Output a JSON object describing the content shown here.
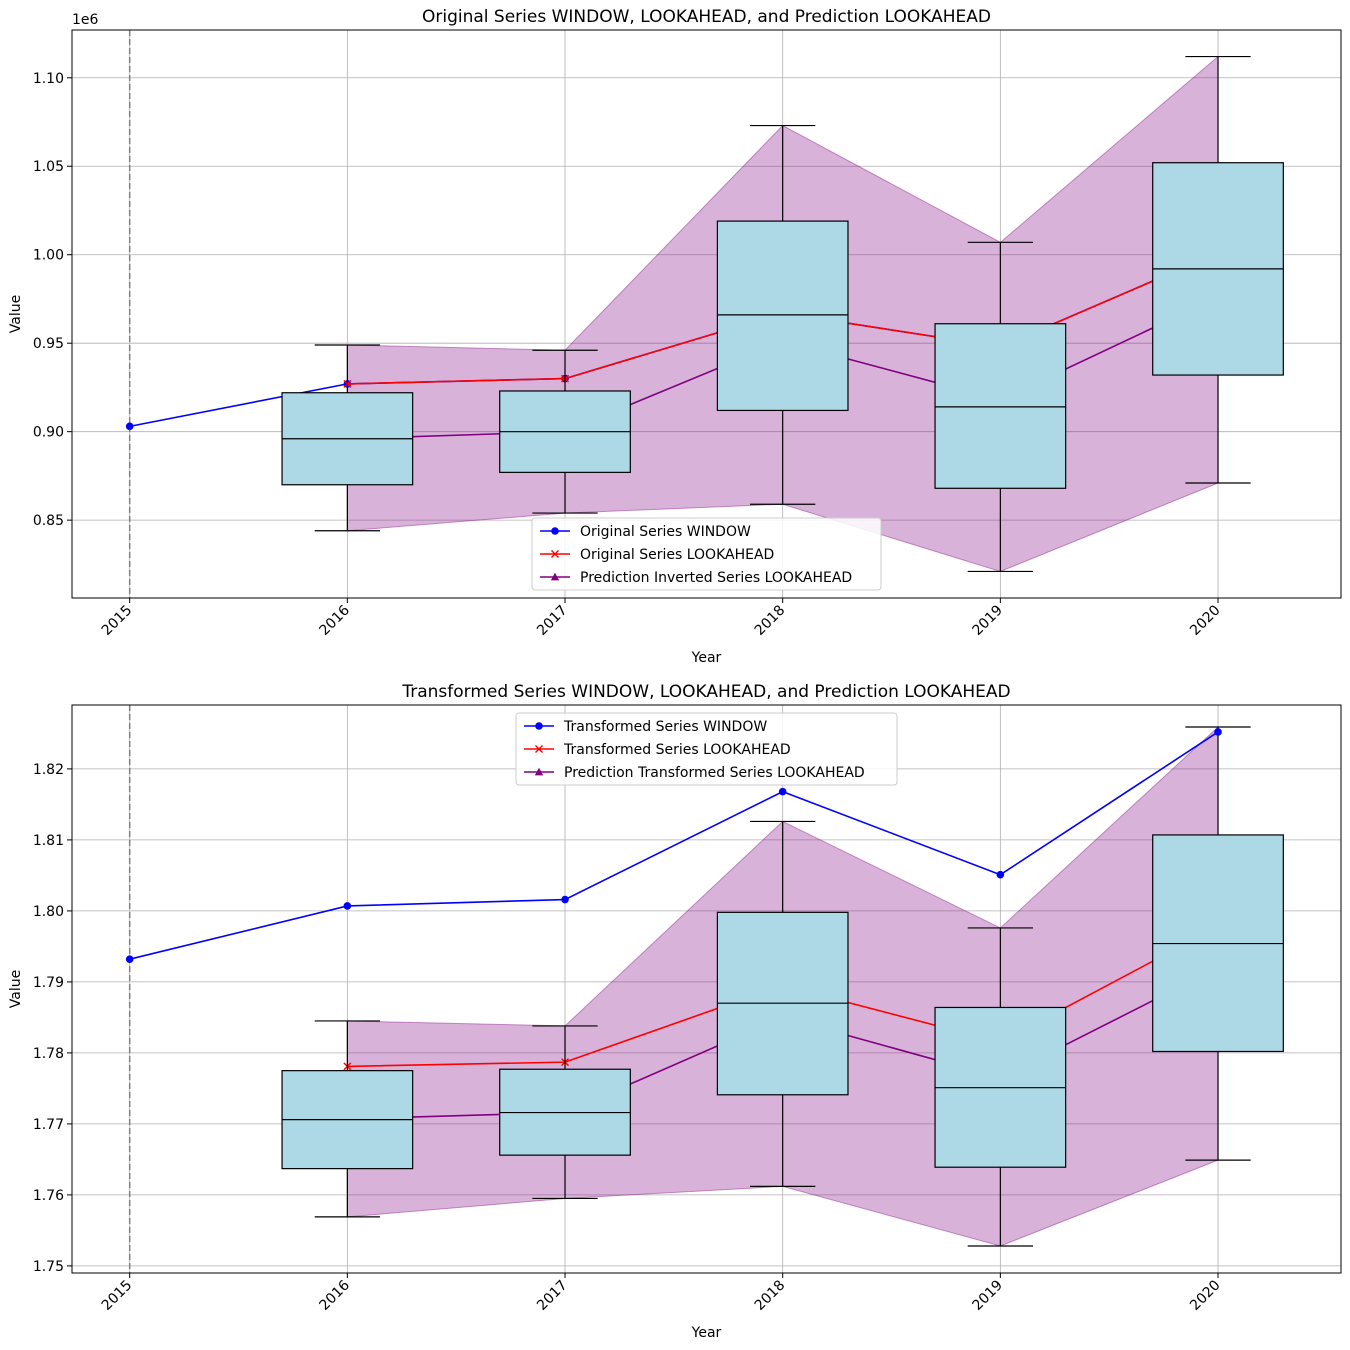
{
  "chart_data": [
    {
      "type": "box",
      "title": "Original Series WINDOW, LOOKAHEAD, and Prediction LOOKAHEAD",
      "xlabel": "Year",
      "ylabel": "Value",
      "offset_text": "1e6",
      "x_tick_labels": [
        "2015",
        "2016",
        "2017",
        "2018",
        "2019",
        "2020"
      ],
      "y_ticks": [
        850000,
        900000,
        950000,
        1000000,
        1050000,
        1100000
      ],
      "y_tick_labels": [
        "0.85",
        "0.90",
        "0.95",
        "1.00",
        "1.05",
        "1.10"
      ],
      "ylim": [
        806000,
        1127000
      ],
      "xlim": [
        2014.735,
        2020.565
      ],
      "grid": true,
      "legend_position": "lower center",
      "vline_x": 2015,
      "series": [
        {
          "name": "Original Series WINDOW",
          "color": "#0000ff",
          "marker": "circle",
          "x": [
            2015,
            2016,
            2017,
            2018,
            2019,
            2020
          ],
          "values": [
            903000,
            927000,
            930000,
            967000,
            948000,
            1001000
          ]
        },
        {
          "name": "Original Series LOOKAHEAD",
          "color": "#ff0000",
          "marker": "x",
          "x": [
            2016,
            2017,
            2018,
            2019,
            2020
          ],
          "values": [
            927000,
            930000,
            967000,
            948000,
            1001000
          ]
        },
        {
          "name": "Prediction Inverted Series LOOKAHEAD",
          "color": "#800080",
          "marker": "triangle",
          "x": [
            2016,
            2017,
            2018,
            2019,
            2020
          ],
          "values": [
            896000,
            900000,
            951000,
            918000,
            976000
          ]
        }
      ],
      "band": {
        "color": "#800080",
        "x": [
          2016,
          2017,
          2018,
          2019,
          2020
        ],
        "lower": [
          844000,
          854000,
          859000,
          821000,
          871000
        ],
        "upper": [
          949000,
          946000,
          1073000,
          1007000,
          1112000
        ]
      },
      "boxes": [
        {
          "x": 2016,
          "q1": 870000,
          "median": 896000,
          "q3": 922000,
          "whisker_low": 844000,
          "whisker_high": 949000
        },
        {
          "x": 2017,
          "q1": 877000,
          "median": 900000,
          "q3": 923000,
          "whisker_low": 854000,
          "whisker_high": 946000
        },
        {
          "x": 2018,
          "q1": 912000,
          "median": 966000,
          "q3": 1019000,
          "whisker_low": 859000,
          "whisker_high": 1073000
        },
        {
          "x": 2019,
          "q1": 868000,
          "median": 914000,
          "q3": 961000,
          "whisker_low": 821000,
          "whisker_high": 1007000
        },
        {
          "x": 2020,
          "q1": 932000,
          "median": 992000,
          "q3": 1052000,
          "whisker_low": 871000,
          "whisker_high": 1112000
        }
      ],
      "box_color": "#add8e6"
    },
    {
      "type": "box",
      "title": "Transformed Series WINDOW, LOOKAHEAD, and Prediction LOOKAHEAD",
      "xlabel": "Year",
      "ylabel": "Value",
      "offset_text": "",
      "x_tick_labels": [
        "2015",
        "2016",
        "2017",
        "2018",
        "2019",
        "2020"
      ],
      "y_ticks": [
        1.75,
        1.76,
        1.77,
        1.78,
        1.79,
        1.8,
        1.81,
        1.82
      ],
      "y_tick_labels": [
        "1.75",
        "1.76",
        "1.77",
        "1.78",
        "1.79",
        "1.80",
        "1.81",
        "1.82"
      ],
      "ylim": [
        1.749,
        1.829
      ],
      "xlim": [
        2014.735,
        2020.565
      ],
      "grid": true,
      "legend_position": "upper center",
      "vline_x": 2015,
      "series": [
        {
          "name": "Transformed Series WINDOW",
          "color": "#0000ff",
          "marker": "circle",
          "x": [
            2015,
            2016,
            2017,
            2018,
            2019,
            2020
          ],
          "values": [
            1.7932,
            1.8007,
            1.8016,
            1.8168,
            1.8051,
            1.8252
          ]
        },
        {
          "name": "Transformed Series LOOKAHEAD",
          "color": "#ff0000",
          "marker": "x",
          "x": [
            2016,
            2017,
            2018,
            2019,
            2020
          ],
          "values": [
            1.7781,
            1.7787,
            1.7895,
            1.7815,
            1.7978
          ]
        },
        {
          "name": "Prediction Transformed Series LOOKAHEAD",
          "color": "#800080",
          "marker": "triangle",
          "x": [
            2016,
            2017,
            2018,
            2019,
            2020
          ],
          "values": [
            1.7707,
            1.7716,
            1.785,
            1.7765,
            1.792
          ]
        }
      ],
      "band": {
        "color": "#800080",
        "x": [
          2016,
          2017,
          2018,
          2019,
          2020
        ],
        "lower": [
          1.7569,
          1.7595,
          1.7612,
          1.7528,
          1.7649
        ],
        "upper": [
          1.7845,
          1.7838,
          1.8126,
          1.7976,
          1.8259
        ]
      },
      "boxes": [
        {
          "x": 2016,
          "q1": 1.7637,
          "median": 1.7706,
          "q3": 1.7775,
          "whisker_low": 1.7569,
          "whisker_high": 1.7845
        },
        {
          "x": 2017,
          "q1": 1.7656,
          "median": 1.7716,
          "q3": 1.7777,
          "whisker_low": 1.7595,
          "whisker_high": 1.7838
        },
        {
          "x": 2018,
          "q1": 1.7741,
          "median": 1.787,
          "q3": 1.7998,
          "whisker_low": 1.7612,
          "whisker_high": 1.8126
        },
        {
          "x": 2019,
          "q1": 1.7639,
          "median": 1.7751,
          "q3": 1.7864,
          "whisker_low": 1.7528,
          "whisker_high": 1.7976
        },
        {
          "x": 2020,
          "q1": 1.7802,
          "median": 1.7954,
          "q3": 1.8107,
          "whisker_low": 1.7649,
          "whisker_high": 1.8259
        }
      ],
      "box_color": "#add8e6"
    }
  ]
}
